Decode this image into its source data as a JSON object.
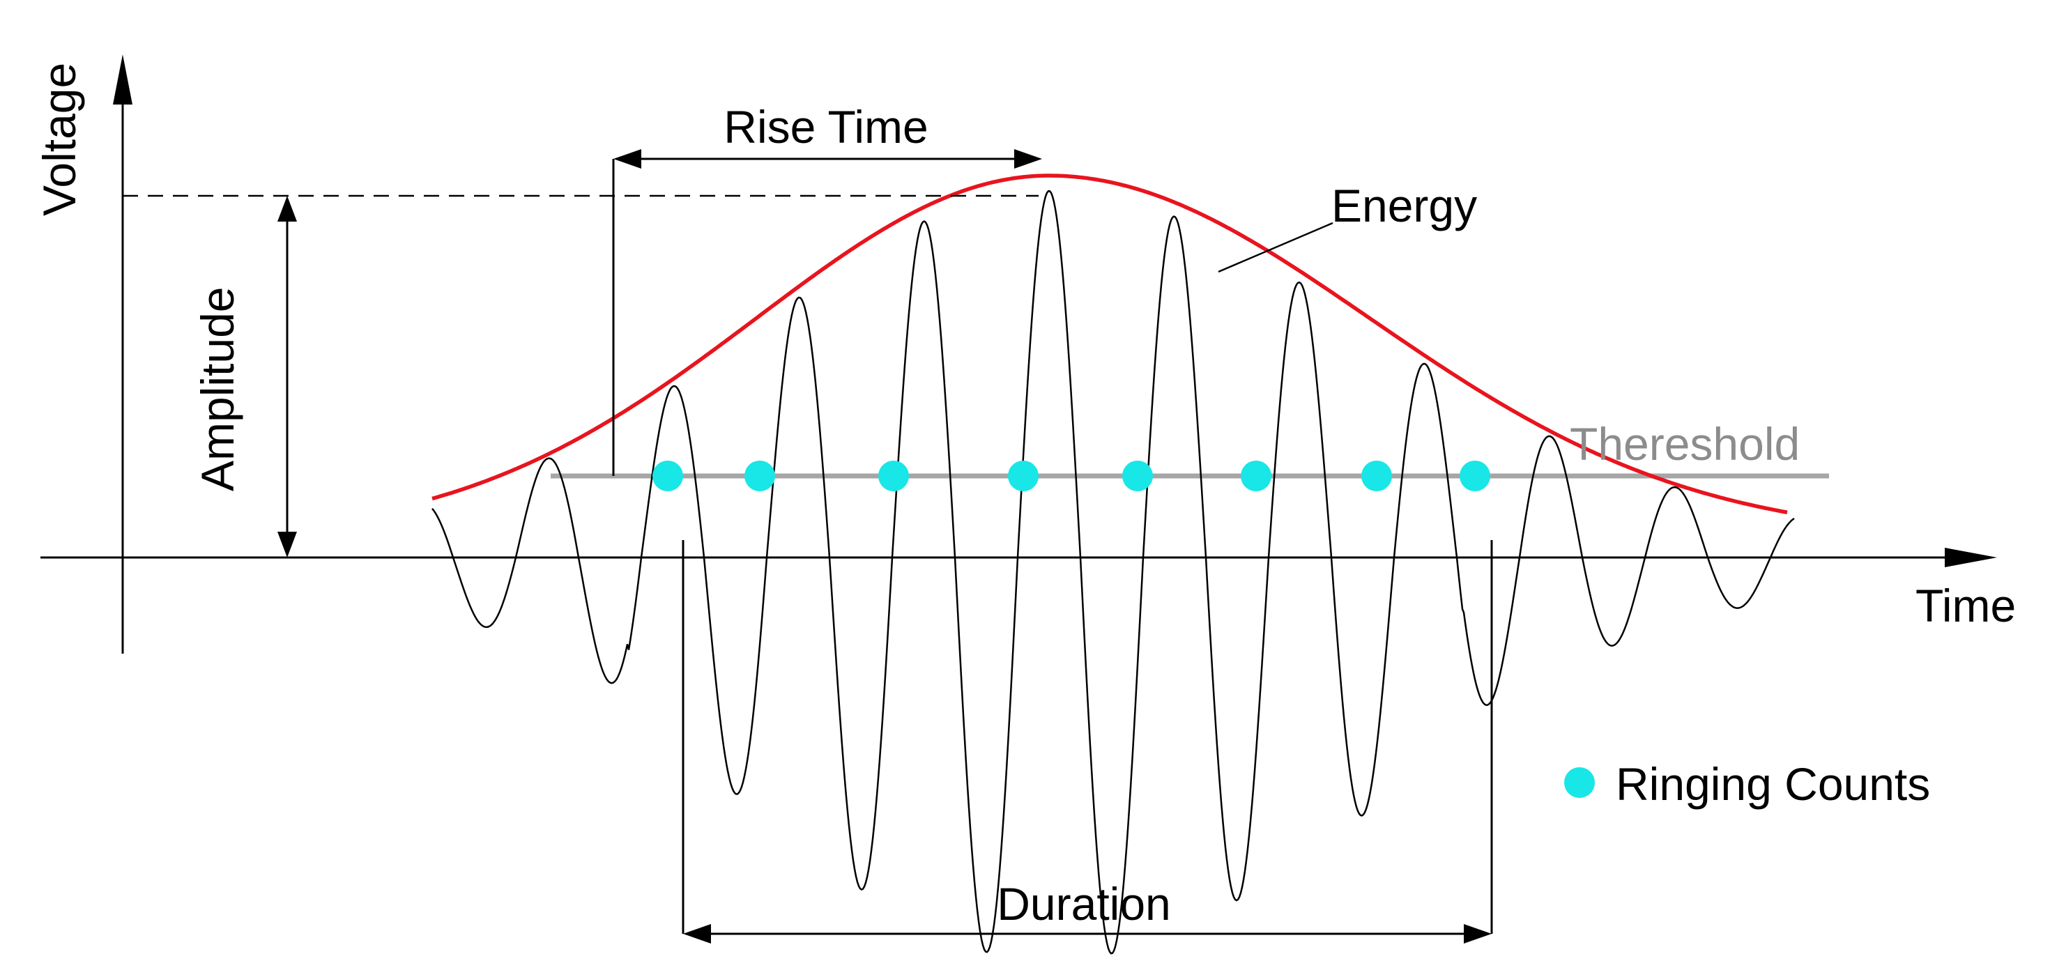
{
  "labels": {
    "voltage": "Voltage",
    "time": "Time",
    "amplitude": "Amplitude",
    "rise_time": "Rise Time",
    "energy": "Energy",
    "threshold": "Thereshold",
    "duration": "Duration",
    "legend_ringing_counts": "Ringing Counts"
  },
  "colors": {
    "waveform": "#000000",
    "envelope": "#e8141e",
    "threshold": "#a6a6a6",
    "ringing_count_marker": "#19e6e6",
    "text": "#000000",
    "threshold_text": "#8c8c8c"
  }
}
